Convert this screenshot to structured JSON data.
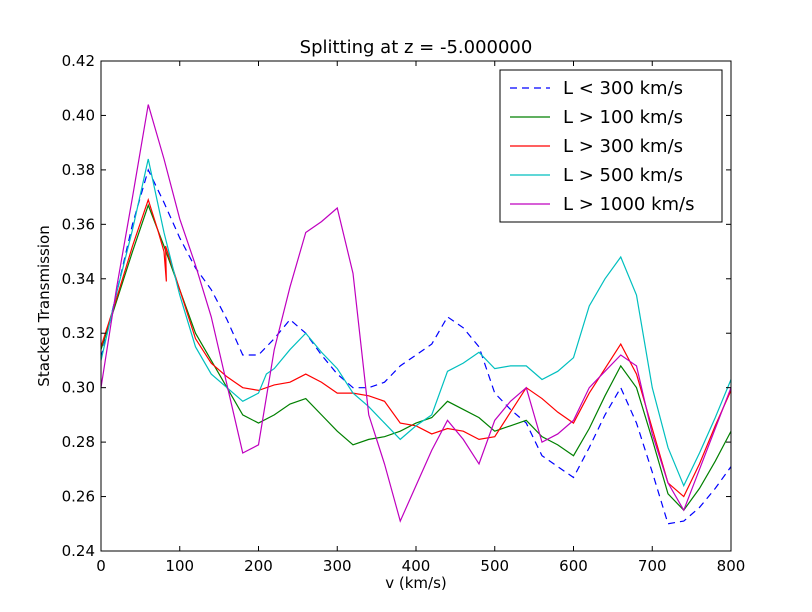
{
  "chart_data": {
    "type": "line",
    "title": "Splitting at z = -5.000000",
    "xlabel": "v (km/s)",
    "ylabel": "Stacked Transmission",
    "xlim": [
      0,
      800
    ],
    "ylim": [
      0.24,
      0.42
    ],
    "xticks": [
      0,
      100,
      200,
      300,
      400,
      500,
      600,
      700,
      800
    ],
    "yticks": [
      0.24,
      0.26,
      0.28,
      0.3,
      0.32,
      0.34,
      0.36,
      0.38,
      0.4,
      0.42
    ],
    "xtick_labels": [
      "0",
      "100",
      "200",
      "300",
      "400",
      "500",
      "600",
      "700",
      "800"
    ],
    "ytick_labels": [
      "0.24",
      "0.26",
      "0.28",
      "0.30",
      "0.32",
      "0.34",
      "0.36",
      "0.38",
      "0.40",
      "0.42"
    ],
    "grid": false,
    "legend_position": "top-right",
    "series": [
      {
        "name": "L < 300 km/s",
        "color": "#0000ff",
        "dash": "dashed",
        "x": [
          0,
          20,
          40,
          60,
          80,
          100,
          120,
          140,
          160,
          180,
          200,
          220,
          240,
          260,
          280,
          300,
          320,
          340,
          360,
          380,
          400,
          420,
          440,
          460,
          480,
          500,
          520,
          540,
          560,
          580,
          600,
          620,
          640,
          660,
          680,
          700,
          720,
          740,
          760,
          780,
          800
        ],
        "y": [
          0.311,
          0.335,
          0.36,
          0.38,
          0.368,
          0.355,
          0.344,
          0.336,
          0.325,
          0.312,
          0.312,
          0.318,
          0.325,
          0.32,
          0.312,
          0.305,
          0.3,
          0.3,
          0.302,
          0.308,
          0.312,
          0.316,
          0.326,
          0.322,
          0.315,
          0.298,
          0.292,
          0.287,
          0.275,
          0.271,
          0.267,
          0.278,
          0.29,
          0.3,
          0.287,
          0.269,
          0.25,
          0.251,
          0.256,
          0.263,
          0.271
        ]
      },
      {
        "name": "L > 100 km/s",
        "color": "#008000",
        "dash": "solid",
        "x": [
          0,
          20,
          40,
          60,
          80,
          100,
          120,
          140,
          160,
          180,
          200,
          220,
          240,
          260,
          280,
          300,
          320,
          340,
          360,
          380,
          400,
          420,
          440,
          460,
          480,
          500,
          520,
          540,
          560,
          580,
          600,
          620,
          640,
          660,
          680,
          700,
          720,
          740,
          760,
          780,
          800
        ],
        "y": [
          0.314,
          0.332,
          0.35,
          0.367,
          0.352,
          0.336,
          0.32,
          0.31,
          0.3,
          0.29,
          0.287,
          0.29,
          0.294,
          0.296,
          0.29,
          0.284,
          0.279,
          0.281,
          0.282,
          0.284,
          0.287,
          0.289,
          0.295,
          0.292,
          0.289,
          0.284,
          0.286,
          0.288,
          0.282,
          0.279,
          0.275,
          0.285,
          0.297,
          0.308,
          0.3,
          0.281,
          0.261,
          0.255,
          0.263,
          0.273,
          0.284
        ]
      },
      {
        "name": "L > 300 km/s",
        "color": "#ff0000",
        "dash": "solid",
        "x": [
          0,
          20,
          40,
          60,
          72,
          80,
          83,
          82,
          100,
          120,
          140,
          160,
          180,
          200,
          220,
          240,
          260,
          280,
          300,
          320,
          340,
          360,
          380,
          400,
          420,
          440,
          460,
          480,
          500,
          520,
          540,
          560,
          580,
          600,
          620,
          640,
          660,
          680,
          700,
          720,
          740,
          760,
          780,
          800
        ],
        "y": [
          0.315,
          0.333,
          0.352,
          0.369,
          0.358,
          0.35,
          0.339,
          0.352,
          0.336,
          0.318,
          0.309,
          0.304,
          0.3,
          0.299,
          0.301,
          0.302,
          0.305,
          0.302,
          0.298,
          0.298,
          0.297,
          0.295,
          0.287,
          0.286,
          0.283,
          0.285,
          0.284,
          0.281,
          0.282,
          0.291,
          0.3,
          0.296,
          0.291,
          0.287,
          0.298,
          0.307,
          0.316,
          0.305,
          0.285,
          0.265,
          0.26,
          0.272,
          0.286,
          0.299
        ]
      },
      {
        "name": "L > 500 km/s",
        "color": "#00bfbf",
        "dash": "solid",
        "x": [
          0,
          20,
          40,
          60,
          80,
          100,
          120,
          140,
          160,
          180,
          200,
          210,
          220,
          240,
          260,
          280,
          300,
          320,
          340,
          360,
          380,
          400,
          420,
          440,
          460,
          480,
          500,
          520,
          540,
          560,
          580,
          600,
          620,
          640,
          660,
          680,
          700,
          720,
          740,
          760,
          780,
          800
        ],
        "y": [
          0.31,
          0.335,
          0.358,
          0.384,
          0.357,
          0.334,
          0.315,
          0.305,
          0.3,
          0.295,
          0.298,
          0.305,
          0.307,
          0.314,
          0.32,
          0.313,
          0.307,
          0.298,
          0.293,
          0.287,
          0.281,
          0.286,
          0.29,
          0.306,
          0.309,
          0.313,
          0.307,
          0.308,
          0.308,
          0.303,
          0.306,
          0.311,
          0.33,
          0.34,
          0.348,
          0.334,
          0.3,
          0.278,
          0.264,
          0.276,
          0.289,
          0.303
        ]
      },
      {
        "name": "L > 1000 km/s",
        "color": "#bf00bf",
        "dash": "solid",
        "x": [
          0,
          20,
          40,
          60,
          80,
          100,
          120,
          140,
          160,
          180,
          200,
          220,
          240,
          260,
          280,
          300,
          320,
          340,
          360,
          380,
          400,
          420,
          440,
          460,
          480,
          500,
          520,
          540,
          560,
          580,
          600,
          620,
          640,
          660,
          680,
          700,
          720,
          740,
          760,
          780,
          800
        ],
        "y": [
          0.3,
          0.337,
          0.37,
          0.404,
          0.384,
          0.362,
          0.345,
          0.326,
          0.301,
          0.276,
          0.279,
          0.314,
          0.337,
          0.357,
          0.361,
          0.366,
          0.342,
          0.29,
          0.272,
          0.251,
          0.264,
          0.277,
          0.288,
          0.281,
          0.272,
          0.288,
          0.295,
          0.3,
          0.28,
          0.283,
          0.288,
          0.3,
          0.306,
          0.312,
          0.308,
          0.283,
          0.265,
          0.255,
          0.27,
          0.285,
          0.3
        ]
      }
    ]
  }
}
